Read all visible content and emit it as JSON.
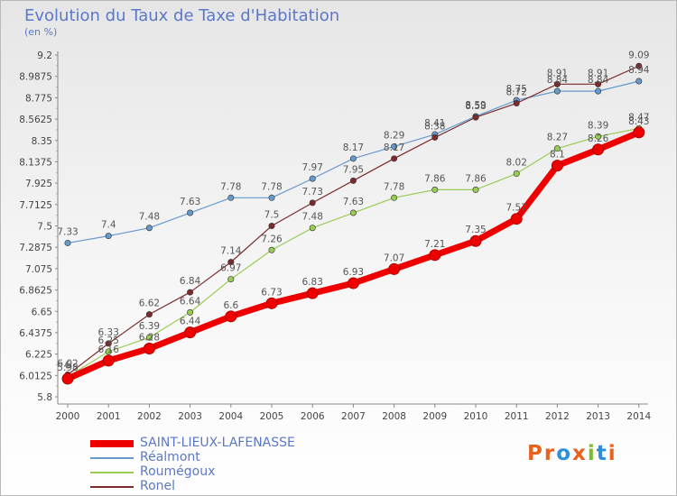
{
  "header": {
    "title": "Evolution du Taux de Taxe d'Habitation",
    "subtitle": "(en %)"
  },
  "logo": {
    "text": "Proxiti",
    "letters": [
      "P",
      "r",
      "o",
      "x",
      "i",
      "t",
      "i"
    ],
    "colors": [
      "#e8621e",
      "#e8621e",
      "#2b8fd9",
      "#e8621e",
      "#7cbb2a",
      "#2b8fd9",
      "#e8621e"
    ]
  },
  "chart_data": {
    "type": "line",
    "title": "Evolution du Taux de Taxe d'Habitation",
    "subtitle": "(en %)",
    "xlabel": "",
    "ylabel": "",
    "x": [
      2000,
      2001,
      2002,
      2003,
      2004,
      2005,
      2006,
      2007,
      2008,
      2009,
      2010,
      2011,
      2012,
      2013,
      2014
    ],
    "ylim": [
      5.8,
      9.2
    ],
    "yticks": [
      "5.8",
      "6.0125",
      "6.225",
      "6.4375",
      "6.65",
      "6.8625",
      "7.075",
      "7.2875",
      "7.5",
      "7.7125",
      "7.925",
      "8.1375",
      "8.35",
      "8.5625",
      "8.775",
      "8.9875",
      "9.2"
    ],
    "grid": false,
    "legend_position": "bottom-left",
    "series": [
      {
        "name": "SAINT-LIEUX-LAFENASSE",
        "color": "#ee0000",
        "width": 7,
        "values": [
          5.98,
          6.16,
          6.28,
          6.44,
          6.6,
          6.73,
          6.83,
          6.93,
          7.07,
          7.21,
          7.35,
          7.57,
          8.1,
          8.26,
          8.43
        ]
      },
      {
        "name": "Réalmont",
        "color": "#6699cc",
        "width": 1.2,
        "values": [
          7.33,
          7.4,
          7.48,
          7.63,
          7.78,
          7.78,
          7.97,
          8.17,
          8.29,
          8.41,
          8.59,
          8.75,
          8.84,
          8.84,
          8.94
        ]
      },
      {
        "name": "Roumégoux",
        "color": "#99cc55",
        "width": 1.2,
        "values": [
          6.0,
          6.25,
          6.39,
          6.64,
          6.97,
          7.26,
          7.48,
          7.63,
          7.78,
          7.86,
          7.86,
          8.02,
          8.27,
          8.39,
          8.47
        ]
      },
      {
        "name": "Ronel",
        "color": "#7b2b2b",
        "width": 1.2,
        "values": [
          6.02,
          6.33,
          6.62,
          6.84,
          7.14,
          7.5,
          7.73,
          7.95,
          8.17,
          8.38,
          8.58,
          8.72,
          8.91,
          8.91,
          9.09
        ]
      }
    ]
  }
}
